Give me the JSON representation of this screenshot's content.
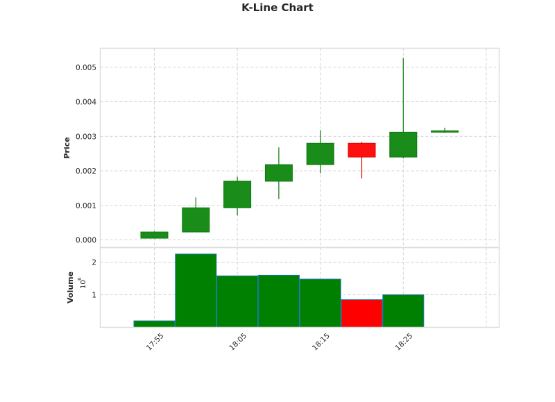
{
  "chart_data": {
    "type": "candlestick",
    "title": "K-Line Chart",
    "price_panel": {
      "ylabel": "Price",
      "ylim": [
        -0.00022,
        0.00555
      ],
      "yticks": [
        0.0,
        0.001,
        0.002,
        0.003,
        0.004,
        0.005
      ],
      "ytick_labels": [
        "0.000",
        "0.001",
        "0.002",
        "0.003",
        "0.004",
        "0.005"
      ],
      "grid": true
    },
    "volume_panel": {
      "ylabel": "Volume",
      "scale_label": "10",
      "scale_exponent": "6",
      "ylim": [
        0,
        2.45
      ],
      "yticks": [
        1,
        2
      ],
      "ytick_labels": [
        "1",
        "2"
      ],
      "grid": true
    },
    "x_axis": {
      "tick_labels": [
        "17:55",
        "18:05",
        "18:15",
        "18:25"
      ],
      "tick_indices": [
        0,
        2,
        4,
        6
      ],
      "extra_grid_index": 8
    },
    "candles": [
      {
        "time": "17:55",
        "open": 5e-05,
        "high": 0.00025,
        "low": 5e-05,
        "close": 0.00023,
        "volume": 0.2,
        "direction": "up"
      },
      {
        "time": "18:00",
        "open": 0.00023,
        "high": 0.00123,
        "low": 0.00023,
        "close": 0.00093,
        "volume": 2.25,
        "direction": "up"
      },
      {
        "time": "18:05",
        "open": 0.00093,
        "high": 0.00183,
        "low": 0.00071,
        "close": 0.0017,
        "volume": 1.58,
        "direction": "up"
      },
      {
        "time": "18:10",
        "open": 0.0017,
        "high": 0.00268,
        "low": 0.00118,
        "close": 0.00218,
        "volume": 1.6,
        "direction": "up"
      },
      {
        "time": "18:15",
        "open": 0.00218,
        "high": 0.00318,
        "low": 0.00193,
        "close": 0.0028,
        "volume": 1.48,
        "direction": "up"
      },
      {
        "time": "18:20",
        "open": 0.0028,
        "high": 0.00284,
        "low": 0.00178,
        "close": 0.0024,
        "volume": 0.85,
        "direction": "down"
      },
      {
        "time": "18:25",
        "open": 0.0024,
        "high": 0.00527,
        "low": 0.00236,
        "close": 0.00312,
        "volume": 1.0,
        "direction": "up"
      },
      {
        "time": "18:30",
        "open": 0.00312,
        "high": 0.00325,
        "low": 0.0031,
        "close": 0.00316,
        "volume": 0,
        "direction": "up"
      }
    ],
    "colors": {
      "up_body": "#1a8c1a",
      "up_edge": "#0a7a0a",
      "down_body": "#ff1010",
      "down_edge": "#e00000",
      "vol_up": "#008000",
      "vol_down": "#ff0000",
      "vol_edge": "#1f77b4",
      "grid": "#cccccc",
      "frame": "#dddddd"
    }
  }
}
